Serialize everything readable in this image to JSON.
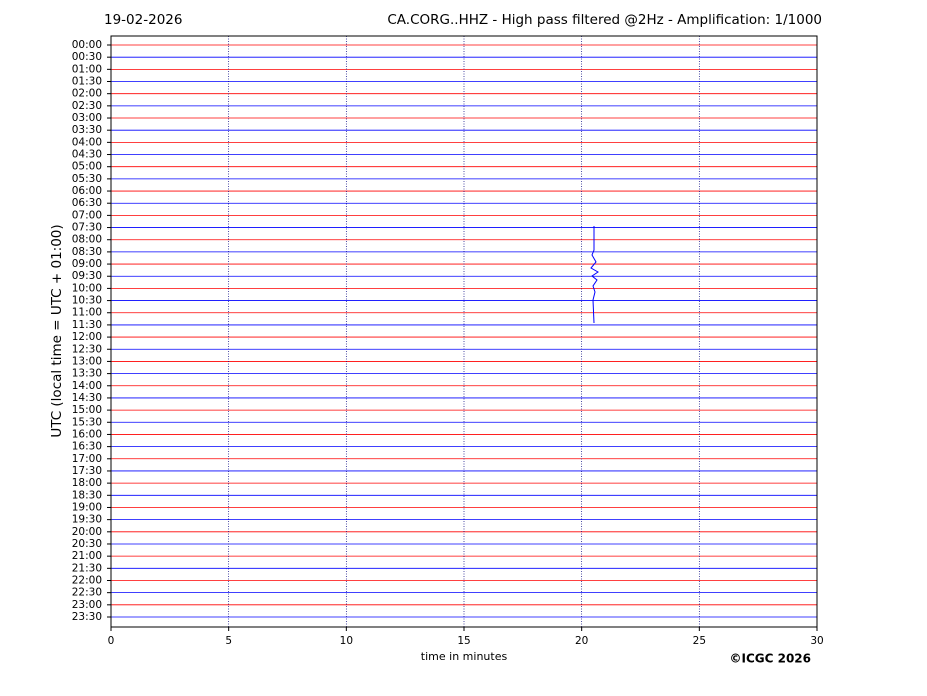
{
  "chart_data": {
    "type": "helicorder",
    "date": "19-02-2026",
    "title": "CA.CORG..HHZ - High pass filtered @2Hz - Amplification: 1/1000",
    "ylabel": "UTC (local time = UTC + 01:00)",
    "xlabel": "time in minutes",
    "copyright": "©ICGC 2026",
    "categories": [
      "00:00",
      "00:30",
      "01:00",
      "01:30",
      "02:00",
      "02:30",
      "03:00",
      "03:30",
      "04:00",
      "04:30",
      "05:00",
      "05:30",
      "06:00",
      "06:30",
      "07:00",
      "07:30",
      "08:00",
      "08:30",
      "09:00",
      "09:30",
      "10:00",
      "10:30",
      "11:00",
      "11:30",
      "12:00",
      "12:30",
      "13:00",
      "13:30",
      "14:00",
      "14:30",
      "15:00",
      "15:30",
      "16:00",
      "16:30",
      "17:00",
      "17:30",
      "18:00",
      "18:30",
      "19:00",
      "19:30",
      "20:00",
      "20:30",
      "21:00",
      "21:30",
      "22:00",
      "22:30",
      "23:00",
      "23:30"
    ],
    "colors": [
      "#ff0000",
      "#0000ff"
    ],
    "xlim": [
      0,
      30
    ],
    "xticks": [
      0,
      5,
      10,
      15,
      20,
      25,
      30
    ],
    "grid": true
  }
}
